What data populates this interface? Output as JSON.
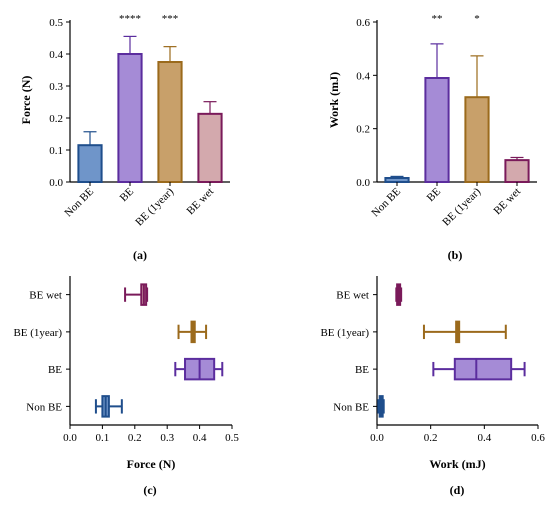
{
  "colors": {
    "Non BE": "#1f4e8c",
    "BE": "#5b2d9e",
    "BE (1year)": "#9b6a1c",
    "BE wet": "#7a1a5a"
  },
  "fills": {
    "Non BE": "#6f95c9",
    "BE": "#a58bd6",
    "BE (1year)": "#c8a06a",
    "BE wet": "#d3a9ad"
  },
  "chart_data": [
    {
      "type": "bar",
      "caption": "(a)",
      "categories": [
        "Non BE",
        "BE",
        "BE (1year)",
        "BE wet"
      ],
      "values": [
        0.115,
        0.4,
        0.375,
        0.213
      ],
      "errors": [
        0.042,
        0.055,
        0.048,
        0.038
      ],
      "significance": [
        "",
        "****",
        "***",
        ""
      ],
      "ylabel": "Force (N)",
      "ylim": [
        0,
        0.5
      ],
      "yticks": [
        "0.0",
        "0.1",
        "0.2",
        "0.3",
        "0.4",
        "0.5"
      ]
    },
    {
      "type": "bar",
      "caption": "(b)",
      "categories": [
        "Non BE",
        "BE",
        "BE (1year)",
        "BE wet"
      ],
      "values": [
        0.015,
        0.39,
        0.318,
        0.082
      ],
      "errors": [
        0.006,
        0.128,
        0.155,
        0.01
      ],
      "significance": [
        "",
        "**",
        "*",
        ""
      ],
      "ylabel": "Work (mJ)",
      "ylim": [
        0,
        0.6
      ],
      "yticks": [
        "0.0",
        "0.2",
        "0.4",
        "0.6"
      ]
    },
    {
      "type": "box",
      "caption": "(c)",
      "categories": [
        "BE wet",
        "BE (1year)",
        "BE",
        "Non BE"
      ],
      "boxes": [
        {
          "min": 0.17,
          "q1": 0.22,
          "median": 0.228,
          "q3": 0.235,
          "max": 0.238
        },
        {
          "min": 0.335,
          "q1": 0.375,
          "median": 0.38,
          "q3": 0.385,
          "max": 0.42
        },
        {
          "min": 0.325,
          "q1": 0.355,
          "median": 0.4,
          "q3": 0.445,
          "max": 0.47
        },
        {
          "min": 0.08,
          "q1": 0.1,
          "median": 0.11,
          "q3": 0.12,
          "max": 0.16
        }
      ],
      "xlabel": "Force (N)",
      "xlim": [
        0,
        0.5
      ],
      "xticks": [
        "0.0",
        "0.1",
        "0.2",
        "0.3",
        "0.4",
        "0.5"
      ]
    },
    {
      "type": "box",
      "caption": "(d)",
      "categories": [
        "BE wet",
        "BE (1year)",
        "BE",
        "Non BE"
      ],
      "boxes": [
        {
          "min": 0.072,
          "q1": 0.075,
          "median": 0.08,
          "q3": 0.085,
          "max": 0.09
        },
        {
          "min": 0.175,
          "q1": 0.295,
          "median": 0.3,
          "q3": 0.305,
          "max": 0.48
        },
        {
          "min": 0.21,
          "q1": 0.29,
          "median": 0.37,
          "q3": 0.5,
          "max": 0.55
        },
        {
          "min": 0.005,
          "q1": 0.01,
          "median": 0.015,
          "q3": 0.02,
          "max": 0.025
        }
      ],
      "xlabel": "Work (mJ)",
      "xlim": [
        0,
        0.6
      ],
      "xticks": [
        "0.0",
        "0.2",
        "0.4",
        "0.6"
      ]
    }
  ]
}
